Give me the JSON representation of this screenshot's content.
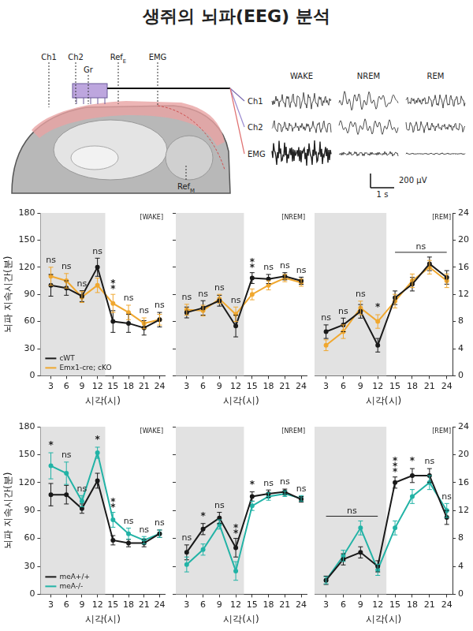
{
  "title": "생쥐의 뇌파(EEG) 분석",
  "diagram": {
    "electrodes": [
      {
        "label": "Ch1"
      },
      {
        "label": "Ch2"
      },
      {
        "label": "Gr"
      },
      {
        "label": "Ref",
        "sub": "E"
      },
      {
        "label": "EMG"
      },
      {
        "label": "Ref",
        "sub": "M"
      }
    ],
    "states": [
      "WAKE",
      "NREM",
      "REM"
    ],
    "channels": [
      "Ch1",
      "Ch2",
      "EMG"
    ],
    "scale_amplitude": "200 μV",
    "scale_time": "1 s"
  },
  "chart_data": [
    {
      "type": "line",
      "title": "[WAKE]",
      "x_label": "시각(시)",
      "y_label": "뇌파 지속시간(분)",
      "x": [
        3,
        6,
        9,
        12,
        15,
        18,
        21,
        24
      ],
      "xlim": [
        1,
        25
      ],
      "xticks": [
        3,
        6,
        9,
        12,
        15,
        18,
        21,
        24
      ],
      "ylim": [
        0,
        180
      ],
      "yticks": [
        0,
        30,
        60,
        90,
        120,
        150,
        180
      ],
      "grid": false,
      "shaded_x": [
        1,
        13.5
      ],
      "legend": "lower left",
      "series": [
        {
          "name": "cWT",
          "color": "#1a1a1a",
          "values": [
            100,
            97,
            88,
            120,
            60,
            58,
            53,
            62
          ],
          "error": [
            12,
            8,
            6,
            10,
            12,
            10,
            8,
            8
          ]
        },
        {
          "name": "Emx1-cre; cKO",
          "color": "#f0a830",
          "values": [
            110,
            105,
            87,
            100,
            80,
            70,
            58,
            62
          ],
          "error": [
            10,
            8,
            6,
            8,
            10,
            8,
            6,
            6
          ]
        }
      ],
      "annotations": [
        {
          "x": 3,
          "text": "ns"
        },
        {
          "x": 6,
          "text": "ns"
        },
        {
          "x": 9,
          "text": "ns"
        },
        {
          "x": 12,
          "text": "ns"
        },
        {
          "x": 15,
          "text": "**"
        },
        {
          "x": 18,
          "text": "ns"
        },
        {
          "x": 21,
          "text": "ns"
        },
        {
          "x": 24,
          "text": "ns"
        }
      ]
    },
    {
      "type": "line",
      "title": "[NREM]",
      "x_label": "시각(시)",
      "x": [
        3,
        6,
        9,
        12,
        15,
        18,
        21,
        24
      ],
      "xlim": [
        1,
        25
      ],
      "xticks": [
        3,
        6,
        9,
        12,
        15,
        18,
        21,
        24
      ],
      "ylim": [
        0,
        180
      ],
      "yticks": [
        0,
        30,
        60,
        90,
        120,
        150,
        180
      ],
      "grid": false,
      "tick_labels": "x",
      "shaded_x": [
        1,
        13.5
      ],
      "series": [
        {
          "color": "#1a1a1a",
          "values": [
            70,
            75,
            83,
            55,
            108,
            107,
            110,
            105
          ],
          "error": [
            6,
            8,
            6,
            12,
            6,
            5,
            4,
            4
          ]
        },
        {
          "color": "#f0a830",
          "values": [
            73,
            72,
            85,
            68,
            90,
            100,
            108,
            103
          ],
          "error": [
            6,
            6,
            5,
            8,
            6,
            5,
            4,
            4
          ]
        }
      ],
      "annotations": [
        {
          "x": 3,
          "text": "ns"
        },
        {
          "x": 6,
          "text": "ns"
        },
        {
          "x": 9,
          "text": "ns"
        },
        {
          "x": 12,
          "text": "ns"
        },
        {
          "x": 15,
          "text": "**"
        },
        {
          "x": 18,
          "text": "ns"
        },
        {
          "x": 21,
          "text": "ns"
        },
        {
          "x": 24,
          "text": "ns"
        }
      ]
    },
    {
      "type": "line",
      "title": "[REM]",
      "x_label": "시각(시)",
      "x": [
        3,
        6,
        9,
        12,
        15,
        18,
        21,
        24
      ],
      "xlim": [
        1,
        25
      ],
      "xticks": [
        3,
        6,
        9,
        12,
        15,
        18,
        21,
        24
      ],
      "y2lim": [
        0,
        24
      ],
      "y2ticks": [
        0,
        4,
        8,
        12,
        16,
        20,
        24
      ],
      "grid": false,
      "shaded_x": [
        1,
        13.5
      ],
      "series": [
        {
          "color": "#1a1a1a",
          "axis": "y2",
          "values": [
            6.5,
            7.5,
            9.5,
            4.5,
            11.5,
            13.5,
            16.5,
            14.5
          ],
          "error": [
            1,
            1,
            1,
            1,
            1,
            1,
            1,
            1
          ]
        },
        {
          "color": "#f0a830",
          "axis": "y2",
          "values": [
            4.5,
            6.5,
            10,
            8,
            11,
            14,
            16,
            14
          ],
          "error": [
            0.8,
            1,
            1,
            1,
            1,
            1,
            1,
            1
          ]
        }
      ],
      "annotations": [
        {
          "x": 3,
          "text": "ns"
        },
        {
          "x": 6,
          "text": "ns"
        },
        {
          "x": 9,
          "text": "ns"
        },
        {
          "x": 12,
          "text": "*"
        },
        {
          "x": [
            15,
            24
          ],
          "text": "ns"
        }
      ]
    },
    {
      "type": "line",
      "title": "[WAKE]",
      "x_label": "시각(시)",
      "y_label": "뇌파 지속시간(분)",
      "x": [
        3,
        6,
        9,
        12,
        15,
        18,
        21,
        24
      ],
      "xlim": [
        1,
        25
      ],
      "xticks": [
        3,
        6,
        9,
        12,
        15,
        18,
        21,
        24
      ],
      "ylim": [
        0,
        180
      ],
      "yticks": [
        0,
        30,
        60,
        90,
        120,
        150,
        180
      ],
      "grid": false,
      "shaded_x": [
        1,
        13.5
      ],
      "legend": "lower left",
      "series": [
        {
          "name": "meA+/+",
          "color": "#1a1a1a",
          "values": [
            107,
            107,
            92,
            122,
            58,
            55,
            55,
            65
          ],
          "error": [
            12,
            10,
            5,
            8,
            5,
            4,
            4,
            4
          ]
        },
        {
          "name": "meA-/-",
          "color": "#22b3a6",
          "values": [
            138,
            130,
            100,
            152,
            80,
            65,
            58,
            65
          ],
          "error": [
            14,
            12,
            6,
            6,
            8,
            6,
            4,
            4
          ]
        }
      ],
      "annotations": [
        {
          "x": 3,
          "text": "*"
        },
        {
          "x": 6,
          "text": "ns"
        },
        {
          "x": 9,
          "text": "ns"
        },
        {
          "x": 12,
          "text": "*"
        },
        {
          "x": 15,
          "text": "**"
        },
        {
          "x": 18,
          "text": "ns"
        },
        {
          "x": 21,
          "text": "ns"
        },
        {
          "x": 24,
          "text": "ns"
        }
      ]
    },
    {
      "type": "line",
      "title": "[NREM]",
      "x_label": "시각(시)",
      "x": [
        3,
        6,
        9,
        12,
        15,
        18,
        21,
        24
      ],
      "xlim": [
        1,
        25
      ],
      "xticks": [
        3,
        6,
        9,
        12,
        15,
        18,
        21,
        24
      ],
      "ylim": [
        0,
        180
      ],
      "yticks": [
        0,
        30,
        60,
        90,
        120,
        150,
        180
      ],
      "grid": false,
      "tick_labels": "x",
      "shaded_x": [
        1,
        13.5
      ],
      "series": [
        {
          "color": "#1a1a1a",
          "values": [
            45,
            70,
            82,
            50,
            105,
            108,
            110,
            102
          ],
          "error": [
            8,
            6,
            6,
            10,
            5,
            4,
            3,
            3
          ]
        },
        {
          "color": "#22b3a6",
          "values": [
            32,
            48,
            75,
            25,
            95,
            105,
            108,
            103
          ],
          "error": [
            8,
            6,
            5,
            10,
            5,
            4,
            3,
            3
          ]
        }
      ],
      "annotations": [
        {
          "x": 3,
          "text": "ns"
        },
        {
          "x": 6,
          "text": "*"
        },
        {
          "x": 9,
          "text": "ns"
        },
        {
          "x": 12,
          "text": "**"
        },
        {
          "x": 15,
          "text": "*"
        },
        {
          "x": 18,
          "text": "ns"
        },
        {
          "x": 21,
          "text": "ns"
        },
        {
          "x": 24,
          "text": "ns"
        }
      ]
    },
    {
      "type": "line",
      "title": "[REM]",
      "x_label": "시각(시)",
      "x": [
        3,
        6,
        9,
        12,
        15,
        18,
        21,
        24
      ],
      "xlim": [
        1,
        25
      ],
      "xticks": [
        3,
        6,
        9,
        12,
        15,
        18,
        21,
        24
      ],
      "y2lim": [
        0,
        24
      ],
      "y2ticks": [
        0,
        4,
        8,
        12,
        16,
        20,
        24
      ],
      "grid": false,
      "shaded_x": [
        1,
        13.5
      ],
      "series": [
        {
          "color": "#1a1a1a",
          "axis": "y2",
          "values": [
            2,
            5,
            6,
            4,
            16,
            17,
            17,
            11
          ],
          "error": [
            0.6,
            0.8,
            0.8,
            0.8,
            0.8,
            1,
            1,
            1
          ]
        },
        {
          "color": "#22b3a6",
          "axis": "y2",
          "values": [
            2,
            5.5,
            9.5,
            3.5,
            9.5,
            14,
            16,
            12
          ],
          "error": [
            0.5,
            0.8,
            1,
            0.8,
            1,
            1,
            1,
            1
          ]
        }
      ],
      "annotations": [
        {
          "x": [
            3,
            12
          ],
          "text": "ns"
        },
        {
          "x": 15,
          "text": "***"
        },
        {
          "x": 18,
          "text": "*"
        },
        {
          "x": 21,
          "text": "ns"
        },
        {
          "x": 24,
          "text": "ns"
        }
      ]
    }
  ]
}
